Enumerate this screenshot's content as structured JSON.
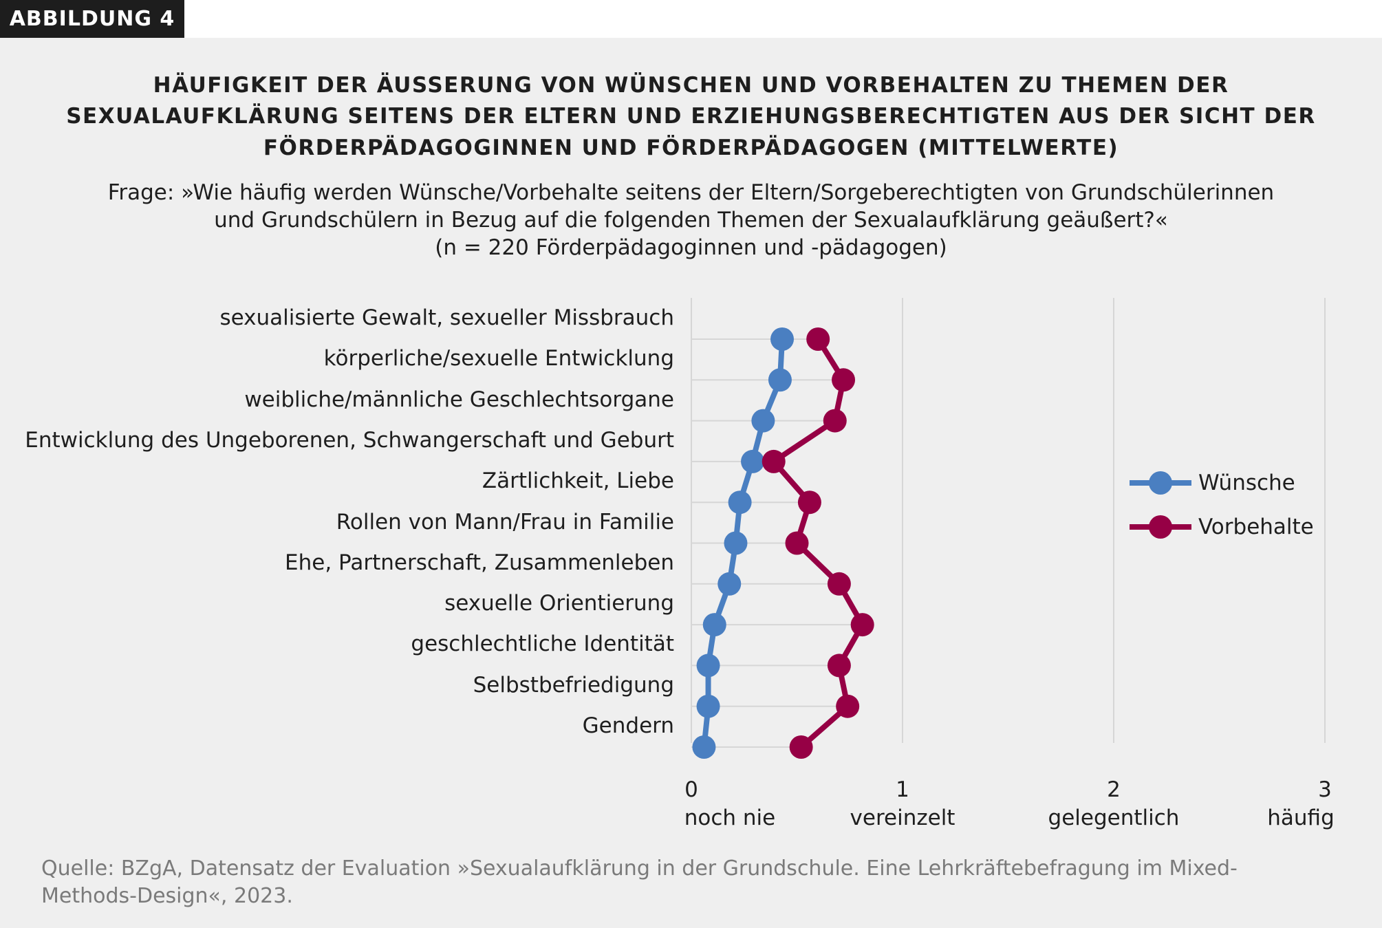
{
  "tag": "ABBILDUNG 4",
  "title_lines": [
    "HÄUFIGKEIT DER ÄUSSERUNG VON WÜNSCHEN UND VORBEHALTEN ZU THEMEN DER",
    "SEXUALAUFKLÄRUNG SEITENS DER ELTERN UND ERZIEHUNGSBERECHTIGTEN AUS DER SICHT DER",
    "FÖRDERPÄDAGOGINNEN UND FÖRDERPÄDAGOGEN (MITTELWERTE)"
  ],
  "question_lines": [
    "Frage: »Wie häufig werden Wünsche/Vorbehalte seitens der Eltern/Sorgeberechtigten von Grundschülerinnen",
    "und Grundschülern in Bezug auf die folgenden Themen der Sexualaufklärung geäußert?«",
    "(n = 220 Förderpädagoginnen und -pädagogen)"
  ],
  "source_lines": [
    "Quelle: BZgA, Datensatz der Evaluation »Sexualaufklärung in der Grundschule. Eine Lehrkräftebefragung im Mixed-",
    "Methods-Design«, 2023."
  ],
  "chart_data": {
    "type": "line",
    "orientation": "horizontal",
    "categories": [
      "sexualisierte Gewalt, sexueller Missbrauch",
      "körperliche/sexuelle Entwicklung",
      "weibliche/männliche Geschlechtsorgane",
      "Entwicklung des Ungeborenen, Schwangerschaft und Geburt",
      "Zärtlichkeit, Liebe",
      "Rollen von Mann/Frau in Familie",
      "Ehe, Partnerschaft, Zusammenleben",
      "sexuelle Orientierung",
      "geschlechtliche Identität",
      "Selbstbefriedigung",
      "Gendern"
    ],
    "series": [
      {
        "name": "Wünsche",
        "color": "#4a7fc1",
        "values": [
          0.43,
          0.42,
          0.34,
          0.29,
          0.23,
          0.21,
          0.18,
          0.11,
          0.08,
          0.08,
          0.06
        ]
      },
      {
        "name": "Vorbehalte",
        "color": "#960045",
        "values": [
          0.6,
          0.72,
          0.68,
          0.39,
          0.56,
          0.5,
          0.7,
          0.81,
          0.7,
          0.74,
          0.52
        ]
      }
    ],
    "xlim": [
      0,
      3
    ],
    "xticks": [
      {
        "value": 0,
        "number": "0",
        "label": "noch nie"
      },
      {
        "value": 1,
        "number": "1",
        "label": "vereinzelt"
      },
      {
        "value": 2,
        "number": "2",
        "label": "gelegentlich"
      },
      {
        "value": 3,
        "number": "3",
        "label": "häufig"
      }
    ],
    "grid": true,
    "legend": "right"
  }
}
